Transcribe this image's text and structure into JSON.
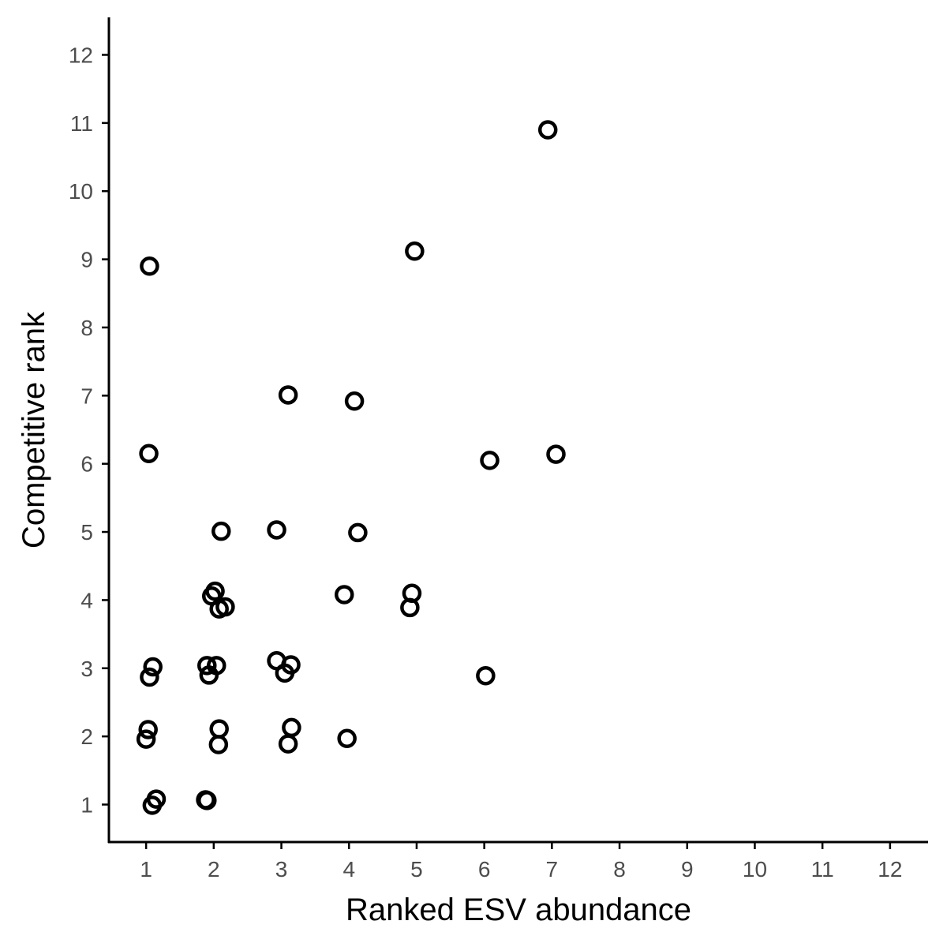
{
  "chart_data": {
    "type": "scatter",
    "title": "",
    "xlabel": "Ranked ESV abundance",
    "ylabel": "Competitive rank",
    "xlim": [
      0.45,
      12.55
    ],
    "ylim": [
      0.45,
      12.55
    ],
    "xticks": [
      1,
      2,
      3,
      4,
      5,
      6,
      7,
      8,
      9,
      10,
      11,
      12
    ],
    "yticks": [
      1,
      2,
      3,
      4,
      5,
      6,
      7,
      8,
      9,
      10,
      11,
      12
    ],
    "grid": false,
    "legend": "none",
    "marker": "open-circle",
    "colors": {
      "point": "#000000",
      "axis": "#000000",
      "tick_label": "#4d4d4d"
    },
    "points": [
      {
        "x": 6.94,
        "y": 10.9
      },
      {
        "x": 4.97,
        "y": 9.12
      },
      {
        "x": 1.05,
        "y": 8.9
      },
      {
        "x": 3.1,
        "y": 7.01
      },
      {
        "x": 4.08,
        "y": 6.92
      },
      {
        "x": 1.04,
        "y": 6.15
      },
      {
        "x": 6.08,
        "y": 6.05
      },
      {
        "x": 7.06,
        "y": 6.14
      },
      {
        "x": 2.11,
        "y": 5.01
      },
      {
        "x": 2.93,
        "y": 5.03
      },
      {
        "x": 4.13,
        "y": 4.99
      },
      {
        "x": 2.02,
        "y": 4.13
      },
      {
        "x": 1.97,
        "y": 4.06
      },
      {
        "x": 2.17,
        "y": 3.9
      },
      {
        "x": 2.08,
        "y": 3.87
      },
      {
        "x": 3.93,
        "y": 4.08
      },
      {
        "x": 4.93,
        "y": 4.1
      },
      {
        "x": 4.9,
        "y": 3.89
      },
      {
        "x": 1.1,
        "y": 3.02
      },
      {
        "x": 1.05,
        "y": 2.87
      },
      {
        "x": 1.9,
        "y": 3.04
      },
      {
        "x": 2.04,
        "y": 3.04
      },
      {
        "x": 1.93,
        "y": 2.9
      },
      {
        "x": 2.93,
        "y": 3.11
      },
      {
        "x": 3.14,
        "y": 3.05
      },
      {
        "x": 3.05,
        "y": 2.93
      },
      {
        "x": 6.02,
        "y": 2.89
      },
      {
        "x": 1.03,
        "y": 2.1
      },
      {
        "x": 1.0,
        "y": 1.96
      },
      {
        "x": 2.08,
        "y": 2.11
      },
      {
        "x": 2.07,
        "y": 1.88
      },
      {
        "x": 3.15,
        "y": 2.13
      },
      {
        "x": 3.1,
        "y": 1.89
      },
      {
        "x": 3.97,
        "y": 1.97
      },
      {
        "x": 1.15,
        "y": 1.08
      },
      {
        "x": 1.09,
        "y": 0.99
      },
      {
        "x": 1.88,
        "y": 1.07
      },
      {
        "x": 1.9,
        "y": 1.06
      }
    ]
  }
}
